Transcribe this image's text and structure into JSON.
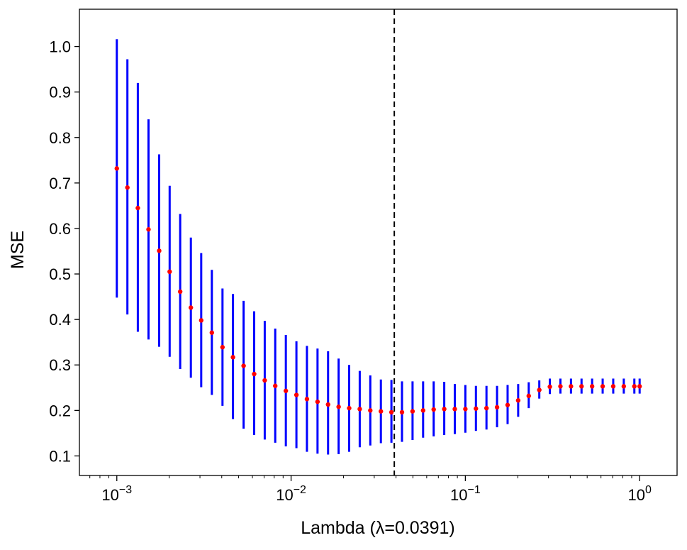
{
  "chart_data": {
    "type": "scatter",
    "title": "",
    "xlabel": "Lambda (λ=0.0391)",
    "ylabel": "MSE",
    "x_scale": "log",
    "xlim": [
      0.00061,
      1.64
    ],
    "ylim": [
      0.057,
      1.082
    ],
    "grid": false,
    "legend": "none",
    "y_ticks": [
      0.1,
      0.2,
      0.3,
      0.4,
      0.5,
      0.6,
      0.7,
      0.8,
      0.9,
      1.0
    ],
    "y_tick_labels": [
      "0.1",
      "0.2",
      "0.3",
      "0.4",
      "0.5",
      "0.6",
      "0.7",
      "0.8",
      "0.9",
      "1.0"
    ],
    "x_ticks": [
      0.001,
      0.01,
      0.1,
      1
    ],
    "x_tick_labels": [
      {
        "base": "10",
        "exp": "−3"
      },
      {
        "base": "10",
        "exp": "−2"
      },
      {
        "base": "10",
        "exp": "−1"
      },
      {
        "base": "10",
        "exp": "0"
      }
    ],
    "vline": {
      "x": 0.0391,
      "style": "dashed",
      "color": "#000000"
    },
    "colors": {
      "point": "#ff0000",
      "errorbar": "#0000ff",
      "frame": "#000000"
    },
    "series": [
      {
        "lambda": [
          0.001,
          0.00115,
          0.00132,
          0.00152,
          0.00175,
          0.00201,
          0.00231,
          0.00266,
          0.00305,
          0.00351,
          0.00404,
          0.00464,
          0.00534,
          0.00614,
          0.00706,
          0.00811,
          0.00933,
          0.01073,
          0.01233,
          0.01418,
          0.0163,
          0.01874,
          0.02154,
          0.02477,
          0.02848,
          0.03275,
          0.03765,
          0.04329,
          0.04977,
          0.05722,
          0.06579,
          0.07565,
          0.08697,
          0.1,
          0.11498,
          0.13219,
          0.15199,
          0.17475,
          0.20092,
          0.23101,
          0.26561,
          0.30539,
          0.35112,
          0.4037,
          0.46416,
          0.53367,
          0.61359,
          0.70548,
          0.81113,
          0.9326,
          1.0
        ],
        "mse": [
          0.732,
          0.69,
          0.645,
          0.598,
          0.551,
          0.505,
          0.461,
          0.426,
          0.398,
          0.371,
          0.339,
          0.317,
          0.298,
          0.28,
          0.266,
          0.254,
          0.243,
          0.234,
          0.225,
          0.219,
          0.213,
          0.208,
          0.205,
          0.203,
          0.2,
          0.198,
          0.196,
          0.196,
          0.198,
          0.2,
          0.202,
          0.203,
          0.203,
          0.203,
          0.204,
          0.205,
          0.207,
          0.212,
          0.222,
          0.232,
          0.245,
          0.252,
          0.253,
          0.253,
          0.253,
          0.253,
          0.253,
          0.253,
          0.253,
          0.253,
          0.253
        ],
        "upper": [
          1.016,
          0.972,
          0.92,
          0.84,
          0.763,
          0.694,
          0.632,
          0.58,
          0.546,
          0.509,
          0.468,
          0.456,
          0.441,
          0.418,
          0.397,
          0.38,
          0.366,
          0.352,
          0.342,
          0.336,
          0.33,
          0.314,
          0.3,
          0.287,
          0.277,
          0.268,
          0.267,
          0.264,
          0.264,
          0.264,
          0.264,
          0.263,
          0.258,
          0.256,
          0.254,
          0.254,
          0.254,
          0.256,
          0.258,
          0.262,
          0.266,
          0.27,
          0.27,
          0.27,
          0.27,
          0.27,
          0.27,
          0.27,
          0.27,
          0.27,
          0.27
        ],
        "lower": [
          0.448,
          0.411,
          0.373,
          0.356,
          0.34,
          0.318,
          0.291,
          0.272,
          0.251,
          0.234,
          0.21,
          0.181,
          0.16,
          0.146,
          0.136,
          0.129,
          0.121,
          0.117,
          0.109,
          0.105,
          0.103,
          0.104,
          0.109,
          0.119,
          0.123,
          0.128,
          0.129,
          0.131,
          0.135,
          0.14,
          0.143,
          0.146,
          0.148,
          0.151,
          0.155,
          0.158,
          0.163,
          0.17,
          0.186,
          0.205,
          0.226,
          0.236,
          0.237,
          0.237,
          0.237,
          0.237,
          0.237,
          0.237,
          0.237,
          0.237,
          0.237
        ]
      }
    ]
  }
}
